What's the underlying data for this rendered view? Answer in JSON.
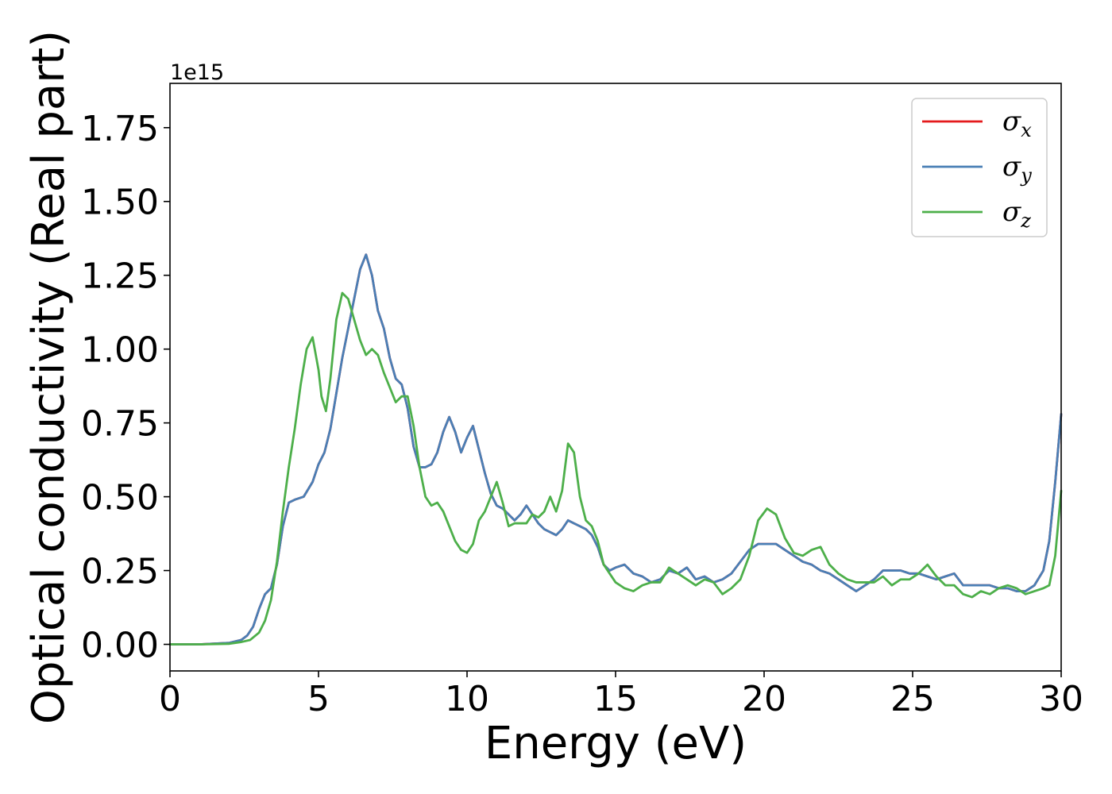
{
  "chart_data": {
    "type": "line",
    "title": "",
    "xlabel": "Energy (eV)",
    "ylabel": "Optical conductivity (Real part)",
    "y_offset_label": "1e15",
    "y_scale": 1000000000000000.0,
    "xlim": [
      0,
      30
    ],
    "ylim": [
      -0.09,
      1.9
    ],
    "x_ticks": [
      0,
      5,
      10,
      15,
      20,
      25,
      30
    ],
    "x_tick_labels": [
      "0",
      "5",
      "10",
      "15",
      "20",
      "25",
      "30"
    ],
    "y_ticks": [
      0,
      0.25,
      0.5,
      0.75,
      1.0,
      1.25,
      1.5,
      1.75
    ],
    "y_tick_labels": [
      "0.00",
      "0.25",
      "0.50",
      "0.75",
      "1.00",
      "1.25",
      "1.50",
      "1.75"
    ],
    "grid": false,
    "legend_position": "top-right",
    "series": [
      {
        "name": "σx",
        "symbol": "σ",
        "subscript": "x",
        "color": "#e41a1c",
        "x": [
          0,
          1,
          2,
          2.4,
          2.6,
          2.8,
          3.0,
          3.2,
          3.4,
          3.6,
          3.8,
          4.0,
          4.2,
          4.5,
          4.8,
          5.0,
          5.2,
          5.4,
          5.6,
          5.8,
          6.0,
          6.2,
          6.4,
          6.6,
          6.8,
          7.0,
          7.2,
          7.4,
          7.6,
          7.8,
          8.0,
          8.2,
          8.4,
          8.6,
          8.8,
          9.0,
          9.2,
          9.4,
          9.6,
          9.8,
          10.0,
          10.2,
          10.4,
          10.6,
          10.8,
          11.0,
          11.2,
          11.4,
          11.6,
          11.8,
          12.0,
          12.2,
          12.4,
          12.6,
          12.8,
          13.0,
          13.2,
          13.4,
          13.6,
          13.8,
          14.0,
          14.2,
          14.4,
          14.6,
          14.8,
          15.0,
          15.3,
          15.6,
          15.9,
          16.2,
          16.5,
          16.8,
          17.1,
          17.4,
          17.7,
          18.0,
          18.3,
          18.6,
          18.9,
          19.2,
          19.5,
          19.8,
          20.1,
          20.4,
          20.7,
          21.0,
          21.3,
          21.6,
          21.9,
          22.2,
          22.5,
          22.8,
          23.1,
          23.4,
          23.7,
          24.0,
          24.3,
          24.6,
          24.9,
          25.2,
          25.5,
          25.8,
          26.1,
          26.4,
          26.7,
          27.0,
          27.3,
          27.6,
          27.9,
          28.2,
          28.5,
          28.8,
          29.1,
          29.4,
          29.6,
          29.8,
          30.0
        ],
        "y": [
          0.0,
          0.0,
          0.005,
          0.015,
          0.03,
          0.06,
          0.12,
          0.17,
          0.19,
          0.27,
          0.4,
          0.48,
          0.49,
          0.5,
          0.55,
          0.61,
          0.65,
          0.73,
          0.85,
          0.97,
          1.07,
          1.17,
          1.27,
          1.32,
          1.25,
          1.13,
          1.07,
          0.97,
          0.9,
          0.88,
          0.8,
          0.67,
          0.6,
          0.6,
          0.61,
          0.65,
          0.72,
          0.77,
          0.72,
          0.65,
          0.7,
          0.74,
          0.66,
          0.58,
          0.51,
          0.47,
          0.46,
          0.44,
          0.42,
          0.44,
          0.47,
          0.44,
          0.41,
          0.39,
          0.38,
          0.37,
          0.39,
          0.42,
          0.41,
          0.4,
          0.39,
          0.37,
          0.33,
          0.27,
          0.25,
          0.26,
          0.27,
          0.24,
          0.23,
          0.21,
          0.22,
          0.25,
          0.24,
          0.26,
          0.22,
          0.23,
          0.21,
          0.22,
          0.24,
          0.28,
          0.32,
          0.34,
          0.34,
          0.34,
          0.32,
          0.3,
          0.28,
          0.27,
          0.25,
          0.24,
          0.22,
          0.2,
          0.18,
          0.2,
          0.22,
          0.25,
          0.25,
          0.25,
          0.24,
          0.24,
          0.23,
          0.22,
          0.23,
          0.24,
          0.2,
          0.2,
          0.2,
          0.2,
          0.19,
          0.19,
          0.18,
          0.18,
          0.2,
          0.25,
          0.35,
          0.55,
          0.78
        ]
      },
      {
        "name": "σy",
        "symbol": "σ",
        "subscript": "y",
        "color": "#4a7fb5",
        "x": [
          0,
          1,
          2,
          2.4,
          2.6,
          2.8,
          3.0,
          3.2,
          3.4,
          3.6,
          3.8,
          4.0,
          4.2,
          4.5,
          4.8,
          5.0,
          5.2,
          5.4,
          5.6,
          5.8,
          6.0,
          6.2,
          6.4,
          6.6,
          6.8,
          7.0,
          7.2,
          7.4,
          7.6,
          7.8,
          8.0,
          8.2,
          8.4,
          8.6,
          8.8,
          9.0,
          9.2,
          9.4,
          9.6,
          9.8,
          10.0,
          10.2,
          10.4,
          10.6,
          10.8,
          11.0,
          11.2,
          11.4,
          11.6,
          11.8,
          12.0,
          12.2,
          12.4,
          12.6,
          12.8,
          13.0,
          13.2,
          13.4,
          13.6,
          13.8,
          14.0,
          14.2,
          14.4,
          14.6,
          14.8,
          15.0,
          15.3,
          15.6,
          15.9,
          16.2,
          16.5,
          16.8,
          17.1,
          17.4,
          17.7,
          18.0,
          18.3,
          18.6,
          18.9,
          19.2,
          19.5,
          19.8,
          20.1,
          20.4,
          20.7,
          21.0,
          21.3,
          21.6,
          21.9,
          22.2,
          22.5,
          22.8,
          23.1,
          23.4,
          23.7,
          24.0,
          24.3,
          24.6,
          24.9,
          25.2,
          25.5,
          25.8,
          26.1,
          26.4,
          26.7,
          27.0,
          27.3,
          27.6,
          27.9,
          28.2,
          28.5,
          28.8,
          29.1,
          29.4,
          29.6,
          29.8,
          30.0
        ],
        "y": [
          0.0,
          0.0,
          0.005,
          0.015,
          0.03,
          0.06,
          0.12,
          0.17,
          0.19,
          0.27,
          0.4,
          0.48,
          0.49,
          0.5,
          0.55,
          0.61,
          0.65,
          0.73,
          0.85,
          0.97,
          1.07,
          1.17,
          1.27,
          1.32,
          1.25,
          1.13,
          1.07,
          0.97,
          0.9,
          0.88,
          0.8,
          0.67,
          0.6,
          0.6,
          0.61,
          0.65,
          0.72,
          0.77,
          0.72,
          0.65,
          0.7,
          0.74,
          0.66,
          0.58,
          0.51,
          0.47,
          0.46,
          0.44,
          0.42,
          0.44,
          0.47,
          0.44,
          0.41,
          0.39,
          0.38,
          0.37,
          0.39,
          0.42,
          0.41,
          0.4,
          0.39,
          0.37,
          0.33,
          0.27,
          0.25,
          0.26,
          0.27,
          0.24,
          0.23,
          0.21,
          0.22,
          0.25,
          0.24,
          0.26,
          0.22,
          0.23,
          0.21,
          0.22,
          0.24,
          0.28,
          0.32,
          0.34,
          0.34,
          0.34,
          0.32,
          0.3,
          0.28,
          0.27,
          0.25,
          0.24,
          0.22,
          0.2,
          0.18,
          0.2,
          0.22,
          0.25,
          0.25,
          0.25,
          0.24,
          0.24,
          0.23,
          0.22,
          0.23,
          0.24,
          0.2,
          0.2,
          0.2,
          0.2,
          0.19,
          0.19,
          0.18,
          0.18,
          0.2,
          0.25,
          0.35,
          0.55,
          0.78
        ]
      },
      {
        "name": "σz",
        "symbol": "σ",
        "subscript": "z",
        "color": "#4daf4a",
        "x": [
          0,
          1,
          2,
          2.4,
          2.7,
          3.0,
          3.2,
          3.4,
          3.6,
          3.8,
          4.0,
          4.2,
          4.4,
          4.6,
          4.8,
          5.0,
          5.1,
          5.25,
          5.4,
          5.6,
          5.8,
          6.0,
          6.2,
          6.4,
          6.6,
          6.8,
          7.0,
          7.2,
          7.4,
          7.6,
          7.8,
          8.0,
          8.2,
          8.4,
          8.6,
          8.8,
          9.0,
          9.2,
          9.4,
          9.6,
          9.8,
          10.0,
          10.2,
          10.4,
          10.6,
          10.8,
          11.0,
          11.2,
          11.4,
          11.6,
          11.8,
          12.0,
          12.2,
          12.4,
          12.6,
          12.8,
          13.0,
          13.2,
          13.4,
          13.6,
          13.8,
          14.0,
          14.2,
          14.4,
          14.6,
          14.8,
          15.0,
          15.3,
          15.6,
          15.9,
          16.2,
          16.5,
          16.8,
          17.1,
          17.4,
          17.7,
          18.0,
          18.3,
          18.6,
          18.9,
          19.2,
          19.5,
          19.8,
          20.1,
          20.4,
          20.7,
          21.0,
          21.3,
          21.6,
          21.9,
          22.2,
          22.5,
          22.8,
          23.1,
          23.4,
          23.7,
          24.0,
          24.3,
          24.6,
          24.9,
          25.2,
          25.5,
          25.8,
          26.1,
          26.4,
          26.7,
          27.0,
          27.3,
          27.6,
          27.9,
          28.2,
          28.5,
          28.8,
          29.1,
          29.4,
          29.6,
          29.8,
          30.0
        ],
        "y": [
          0.0,
          0.0,
          0.002,
          0.008,
          0.015,
          0.04,
          0.08,
          0.15,
          0.28,
          0.45,
          0.6,
          0.73,
          0.88,
          1.0,
          1.04,
          0.93,
          0.84,
          0.79,
          0.9,
          1.1,
          1.19,
          1.17,
          1.1,
          1.03,
          0.98,
          1.0,
          0.98,
          0.92,
          0.87,
          0.82,
          0.84,
          0.84,
          0.74,
          0.6,
          0.5,
          0.47,
          0.48,
          0.45,
          0.4,
          0.35,
          0.32,
          0.31,
          0.34,
          0.42,
          0.45,
          0.5,
          0.55,
          0.48,
          0.4,
          0.41,
          0.41,
          0.41,
          0.44,
          0.43,
          0.45,
          0.5,
          0.45,
          0.52,
          0.68,
          0.65,
          0.5,
          0.42,
          0.4,
          0.35,
          0.27,
          0.24,
          0.21,
          0.19,
          0.18,
          0.2,
          0.21,
          0.21,
          0.26,
          0.24,
          0.22,
          0.2,
          0.22,
          0.21,
          0.17,
          0.19,
          0.22,
          0.3,
          0.42,
          0.46,
          0.44,
          0.36,
          0.31,
          0.3,
          0.32,
          0.33,
          0.27,
          0.24,
          0.22,
          0.21,
          0.21,
          0.21,
          0.23,
          0.2,
          0.22,
          0.22,
          0.24,
          0.27,
          0.23,
          0.2,
          0.2,
          0.17,
          0.16,
          0.18,
          0.17,
          0.19,
          0.2,
          0.19,
          0.17,
          0.18,
          0.19,
          0.2,
          0.3,
          0.52
        ]
      }
    ]
  }
}
